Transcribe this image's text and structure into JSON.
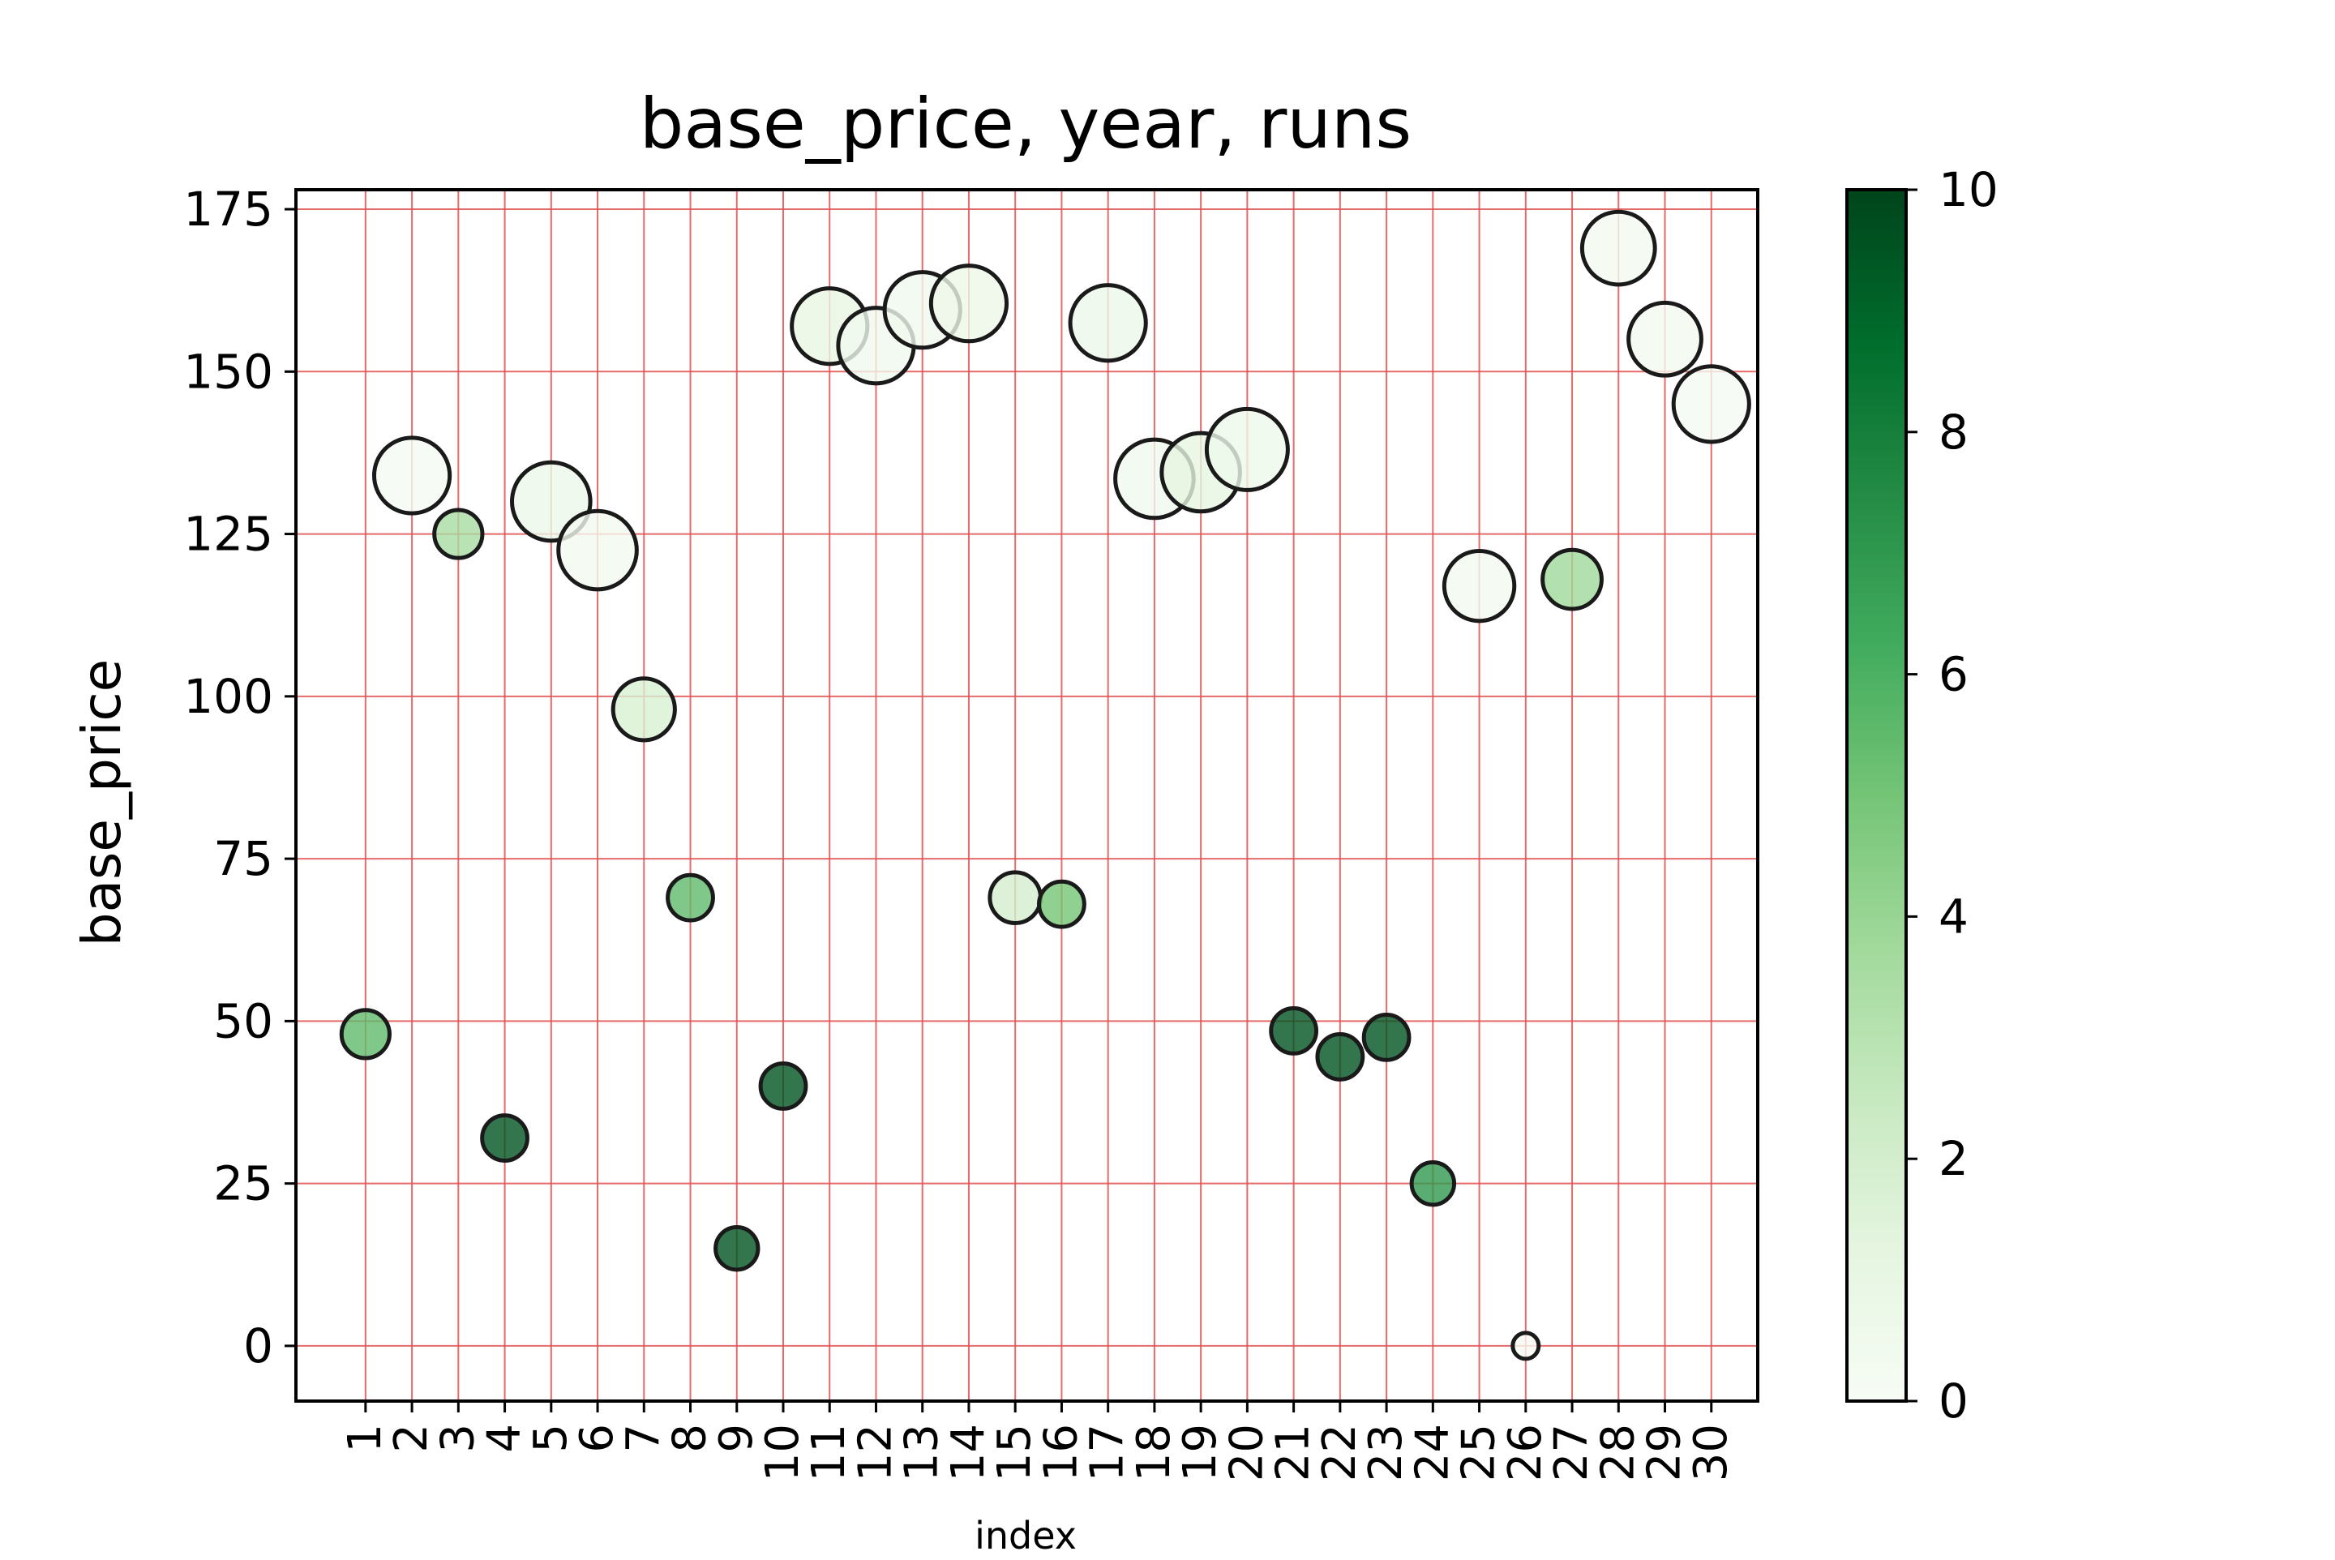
{
  "chart_data": {
    "type": "scatter",
    "title": "base_price, year, runs",
    "xlabel": "index",
    "ylabel": "base_price",
    "x": [
      1,
      2,
      3,
      4,
      5,
      6,
      7,
      8,
      9,
      10,
      11,
      12,
      13,
      14,
      15,
      16,
      17,
      18,
      19,
      20,
      21,
      22,
      23,
      24,
      25,
      26,
      27,
      28,
      29,
      30
    ],
    "x_tick_labels": [
      "1",
      "2",
      "3",
      "4",
      "5",
      "6",
      "7",
      "8",
      "9",
      "10",
      "11",
      "12",
      "13",
      "14",
      "15",
      "16",
      "17",
      "18",
      "19",
      "20",
      "21",
      "22",
      "23",
      "24",
      "25",
      "26",
      "27",
      "28",
      "29",
      "30"
    ],
    "y": [
      48,
      134,
      125,
      32,
      130,
      122.5,
      98,
      69,
      15,
      40,
      157,
      154,
      159.5,
      160.5,
      69,
      68,
      157.5,
      133.5,
      134.5,
      138,
      48.5,
      44.5,
      47.5,
      25,
      117,
      0,
      118,
      169,
      155,
      145
    ],
    "size_values": [
      2010,
      2020,
      2010,
      2009,
      2021,
      2021,
      2015,
      2009,
      2008,
      2009,
      2020,
      2020,
      2020,
      2020,
      2011,
      2009,
      2020,
      2021,
      2021,
      2022,
      2009,
      2009,
      2009,
      2008,
      2018,
      2002,
      2014,
      2019,
      2019,
      2020
    ],
    "color_values": [
      5.5,
      0.2,
      3.5,
      9.5,
      0.8,
      0.3,
      1.8,
      5.5,
      9.5,
      9.5,
      1.0,
      0.5,
      0.5,
      0.7,
      2.0,
      5.0,
      0.8,
      0.5,
      1.2,
      0.6,
      9.5,
      9.5,
      9.5,
      7.0,
      0.3,
      0.1,
      3.8,
      0.3,
      0.3,
      0.2
    ],
    "xlim": [
      -0.5,
      31
    ],
    "ylim": [
      -8.5,
      178
    ],
    "y_ticks": [
      0,
      25,
      50,
      75,
      100,
      125,
      150,
      175
    ],
    "grid": true,
    "colorbar": {
      "min": 0,
      "max": 10,
      "ticks": [
        0,
        2,
        4,
        6,
        8,
        10
      ],
      "colormap": "Greens"
    },
    "colors": {
      "grid": "#e05050",
      "marker_edge": "#1a1a1a",
      "cmap_low": "#f7fcf5",
      "cmap_high": "#00441b"
    }
  }
}
